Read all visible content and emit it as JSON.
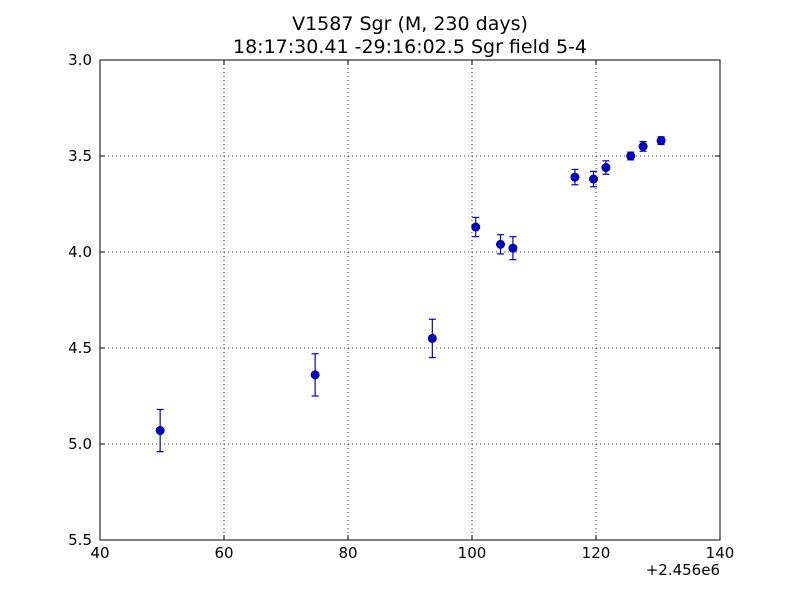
{
  "chart_data": {
    "type": "scatter",
    "title": "V1587 Sgr  (M, 230 days)",
    "subtitle": "18:17:30.41 -29:16:02.5 Sgr field 5-4",
    "xlabel": "",
    "ylabel": "",
    "x_offset_label": "+2.456e6",
    "xlim": [
      40,
      140
    ],
    "ylim": [
      5.5,
      3.0
    ],
    "y_inverted": true,
    "grid": true,
    "x_ticks": [
      40,
      60,
      80,
      100,
      120,
      140
    ],
    "x_tick_labels": [
      "40",
      "60",
      "80",
      "100",
      "120",
      "140"
    ],
    "y_ticks": [
      3.0,
      3.5,
      4.0,
      4.5,
      5.0,
      5.5
    ],
    "y_tick_labels": [
      "3.0",
      "3.5",
      "4.0",
      "4.5",
      "5.0",
      "5.5"
    ],
    "marker_color": "#0000cc",
    "points": [
      {
        "x": 49.7,
        "y": 4.93,
        "err": 0.11
      },
      {
        "x": 74.7,
        "y": 4.64,
        "err": 0.11
      },
      {
        "x": 93.6,
        "y": 4.45,
        "err": 0.1
      },
      {
        "x": 100.6,
        "y": 3.87,
        "err": 0.05
      },
      {
        "x": 104.6,
        "y": 3.96,
        "err": 0.05
      },
      {
        "x": 106.6,
        "y": 3.98,
        "err": 0.06
      },
      {
        "x": 116.6,
        "y": 3.61,
        "err": 0.04
      },
      {
        "x": 119.6,
        "y": 3.62,
        "err": 0.04
      },
      {
        "x": 121.6,
        "y": 3.56,
        "err": 0.035
      },
      {
        "x": 125.6,
        "y": 3.5,
        "err": 0.02
      },
      {
        "x": 127.6,
        "y": 3.45,
        "err": 0.025
      },
      {
        "x": 130.5,
        "y": 3.42,
        "err": 0.02
      }
    ]
  }
}
